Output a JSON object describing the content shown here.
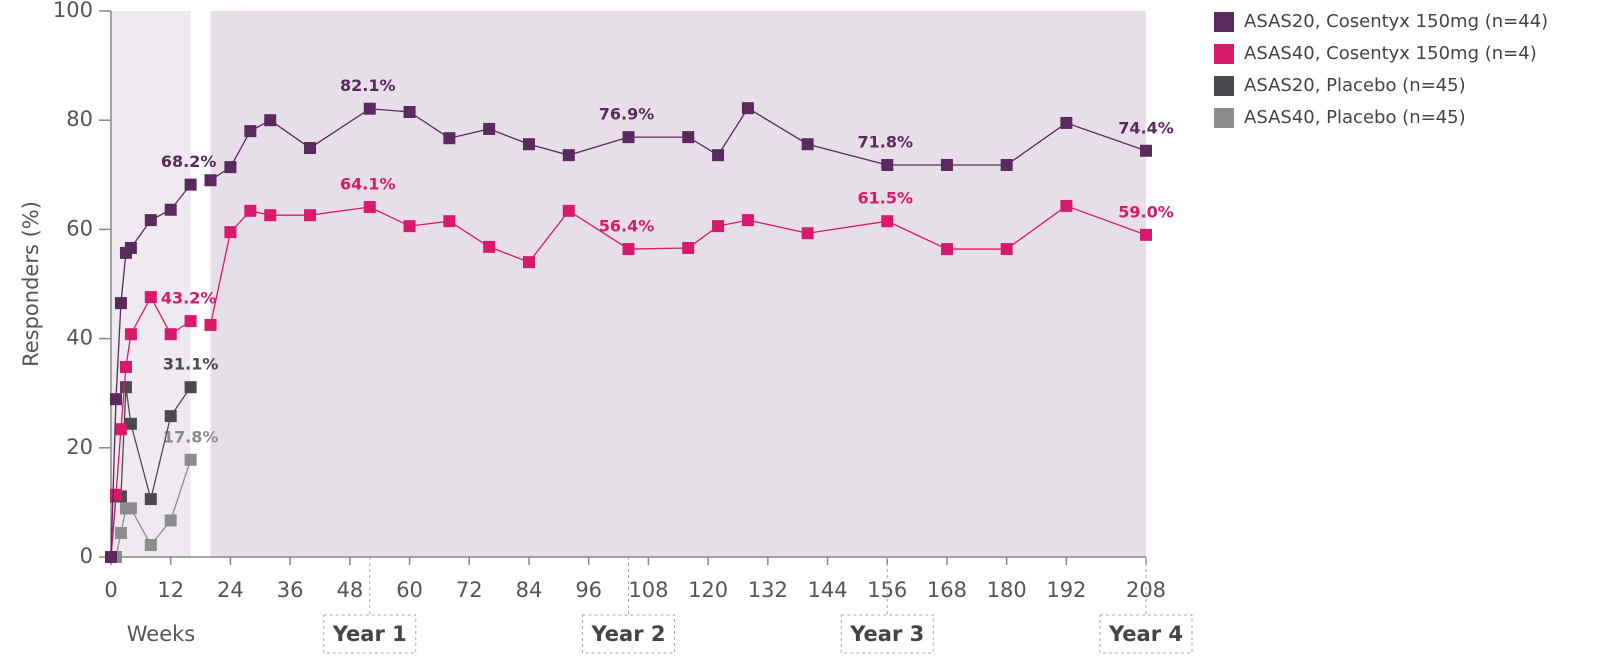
{
  "chart_data": {
    "type": "line",
    "y_label": "Responders (%)",
    "x_label": "Weeks",
    "xlim": [
      0,
      208
    ],
    "xticks": [
      0,
      12,
      24,
      36,
      48,
      60,
      72,
      84,
      96,
      108,
      120,
      132,
      144,
      156,
      168,
      180,
      192,
      208
    ],
    "ylim": [
      0,
      100
    ],
    "yticks": [
      0,
      20,
      40,
      60,
      80,
      100
    ],
    "year_markers": [
      {
        "value": 52,
        "label": "Year 1"
      },
      {
        "value": 104,
        "label": "Year 2"
      },
      {
        "value": 156,
        "label": "Year 3"
      },
      {
        "value": 208,
        "label": "Year 4"
      }
    ],
    "shaded_ranges": [
      {
        "range": [
          0,
          16
        ],
        "color": "#eeeaef"
      },
      {
        "range": [
          20,
          208
        ],
        "color": "#e7dfe8"
      }
    ],
    "legend": "outside-top-right",
    "series": [
      {
        "name": "ASAS20, Cosentyx 150mg (n=44)",
        "color": "#5a2a5e",
        "x": [
          0,
          1,
          2,
          3,
          4,
          8,
          12,
          16,
          20,
          24,
          28,
          32,
          40,
          52,
          60,
          68,
          76,
          84,
          92,
          104,
          116,
          122,
          128,
          140,
          156,
          168,
          180,
          192,
          208
        ],
        "values": [
          0,
          28.9,
          46.5,
          55.7,
          56.6,
          61.7,
          63.6,
          68.2,
          69.0,
          71.4,
          78.0,
          80.0,
          74.9,
          82.1,
          81.5,
          76.7,
          78.4,
          75.6,
          73.6,
          76.9,
          76.9,
          73.6,
          82.2,
          75.6,
          71.8,
          71.8,
          71.8,
          79.5,
          74.4
        ],
        "value_labels": [
          null,
          null,
          null,
          null,
          null,
          null,
          null,
          "68.2%",
          null,
          null,
          null,
          null,
          null,
          "82.1%",
          null,
          null,
          null,
          null,
          null,
          "76.9%",
          null,
          null,
          null,
          null,
          "71.8%",
          null,
          null,
          null,
          "74.4%"
        ]
      },
      {
        "name": "ASAS40, Cosentyx 150mg (n=4)",
        "color": "#d8196c",
        "x": [
          0,
          1,
          2,
          3,
          4,
          8,
          12,
          16,
          20,
          24,
          28,
          32,
          40,
          52,
          60,
          68,
          76,
          84,
          92,
          104,
          116,
          122,
          128,
          140,
          156,
          168,
          180,
          192,
          208
        ],
        "values": [
          0,
          11.4,
          23.4,
          34.8,
          40.8,
          47.6,
          40.8,
          43.2,
          42.5,
          59.5,
          63.4,
          62.6,
          62.6,
          64.1,
          60.6,
          61.5,
          56.8,
          54.0,
          63.4,
          56.4,
          56.6,
          60.6,
          61.7,
          59.3,
          61.5,
          56.4,
          56.4,
          64.3,
          59.0
        ],
        "value_labels": [
          null,
          null,
          null,
          null,
          null,
          null,
          null,
          "43.2%",
          null,
          null,
          null,
          null,
          null,
          "64.1%",
          null,
          null,
          null,
          null,
          null,
          "56.4%",
          null,
          null,
          null,
          null,
          "61.5%",
          null,
          null,
          null,
          "59.0%"
        ]
      },
      {
        "name": "ASAS20, Placebo (n=45)",
        "color": "#4a4a4e",
        "x": [
          0,
          1,
          2,
          3,
          4,
          8,
          12,
          16
        ],
        "values": [
          0,
          11.1,
          11.1,
          31.1,
          24.4,
          10.6,
          25.8,
          31.1
        ],
        "value_labels": [
          null,
          null,
          null,
          null,
          null,
          null,
          null,
          "31.1%"
        ]
      },
      {
        "name": "ASAS40, Placebo (n=45)",
        "color": "#8c8c8f",
        "x": [
          0,
          1,
          2,
          3,
          4,
          8,
          12,
          16
        ],
        "values": [
          0,
          0,
          4.4,
          8.9,
          8.9,
          2.2,
          6.7,
          17.8
        ],
        "value_labels": [
          null,
          null,
          null,
          null,
          null,
          null,
          null,
          "17.8%"
        ]
      }
    ]
  }
}
